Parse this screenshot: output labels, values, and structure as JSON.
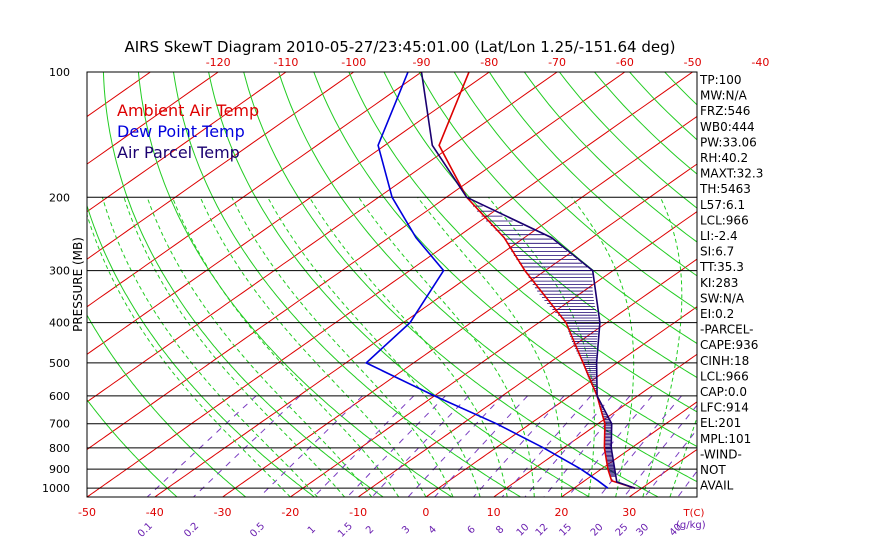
{
  "title": "AIRS SkewT Diagram 2010-05-27/23:45:01.00 (Lat/Lon 1.25/-151.64 deg)",
  "legend": [
    {
      "label": "Ambient Air Temp",
      "color": "#dd0000"
    },
    {
      "label": "Dew Point Temp",
      "color": "#0000dd"
    },
    {
      "label": "Air Parcel Temp",
      "color": "#1a0070"
    }
  ],
  "indices": [
    "TP:100",
    "MW:N/A",
    "FRZ:546",
    "WB0:444",
    "PW:33.06",
    "RH:40.2",
    "MAXT:32.3",
    "TH:5463",
    "L57:6.1",
    "LCL:966",
    "LI:-2.4",
    "SI:6.7",
    "TT:35.3",
    "KI:283",
    "SW:N/A",
    "EI:0.2",
    "-PARCEL-",
    "CAPE:936",
    "CINH:18",
    "LCL:966",
    "CAP:0.0",
    "LFC:914",
    "EL:201",
    "MPL:101",
    "-WIND-",
    "NOT",
    "AVAIL"
  ],
  "chart_data": {
    "type": "line",
    "title": "AIRS SkewT Diagram 2010-05-27/23:45:01.00 (Lat/Lon 1.25/-151.64 deg)",
    "ylabel": "PRESSURE (MB)",
    "xlabel": "T(C)",
    "mixing_ratio_label": "g/kg",
    "pressure_ticks": [
      100,
      200,
      300,
      400,
      500,
      600,
      700,
      800,
      900,
      1000
    ],
    "isobars": [
      200,
      300,
      400,
      500,
      600,
      700,
      800,
      900,
      1000
    ],
    "top_temp_ticks": [
      -120,
      -110,
      -100,
      -90,
      -80,
      -70,
      -60,
      -50,
      -40
    ],
    "bottom_temp_ticks": [
      -50,
      -40,
      -30,
      -20,
      -10,
      0,
      10,
      20,
      30
    ],
    "mixing_ratio_ticks": [
      "0.1",
      "0.2",
      "0.5",
      "1",
      "1.5",
      "2",
      "3",
      "4",
      "6",
      "8",
      "10",
      "12",
      "15",
      "20",
      "25",
      "30",
      "40"
    ],
    "mixing_ratio_values": [
      0.1,
      0.2,
      0.5,
      1,
      1.5,
      2,
      3,
      4,
      6,
      8,
      10,
      12,
      15,
      20,
      25,
      30,
      40
    ],
    "temp_range": [
      -50,
      40
    ],
    "pressure_range": [
      100,
      1050
    ],
    "skew_deg_per_log": 175,
    "series": [
      {
        "name": "Ambient Air Temp",
        "color": "#dd0000",
        "points": [
          [
            100,
            -83
          ],
          [
            150,
            -72
          ],
          [
            200,
            -57
          ],
          [
            250,
            -43
          ],
          [
            300,
            -33
          ],
          [
            400,
            -16
          ],
          [
            500,
            -5
          ],
          [
            600,
            4
          ],
          [
            700,
            11
          ],
          [
            800,
            16
          ],
          [
            900,
            21
          ],
          [
            960,
            24
          ],
          [
            1000,
            29
          ]
        ]
      },
      {
        "name": "Dew Point Temp",
        "color": "#0000dd",
        "points": [
          [
            100,
            -92
          ],
          [
            150,
            -81
          ],
          [
            200,
            -68
          ],
          [
            250,
            -56
          ],
          [
            300,
            -45
          ],
          [
            400,
            -39
          ],
          [
            500,
            -37
          ],
          [
            600,
            -20
          ],
          [
            700,
            -5
          ],
          [
            800,
            7
          ],
          [
            900,
            17
          ],
          [
            960,
            22
          ],
          [
            1000,
            25
          ]
        ]
      },
      {
        "name": "Air Parcel Temp",
        "color": "#1a0070",
        "points": [
          [
            100,
            -90
          ],
          [
            150,
            -73
          ],
          [
            200,
            -57
          ],
          [
            250,
            -36
          ],
          [
            300,
            -23
          ],
          [
            400,
            -11
          ],
          [
            500,
            -3
          ],
          [
            600,
            4
          ],
          [
            700,
            12
          ],
          [
            800,
            17
          ],
          [
            900,
            22
          ],
          [
            966,
            25
          ],
          [
            1000,
            29
          ]
        ]
      }
    ]
  }
}
